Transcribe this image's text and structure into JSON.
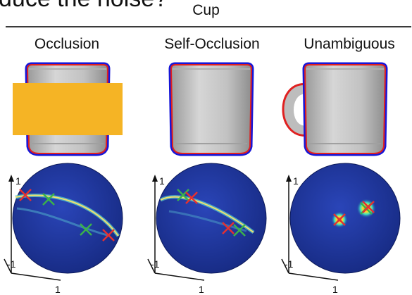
{
  "cut_text": "duce the noise?",
  "title": "Cup",
  "columns": [
    {
      "label": "Occlusion",
      "has_occluder": true,
      "has_handle": false
    },
    {
      "label": "Self-Occlusion",
      "has_occluder": false,
      "has_handle": false
    },
    {
      "label": "Unambiguous",
      "has_occluder": false,
      "has_handle": true
    }
  ],
  "axis_ticks": {
    "up": "1",
    "left": "-1",
    "bottom": "1"
  },
  "colors": {
    "cup_body": "#c9c9c9",
    "cup_outline_blue": "#1616d8",
    "cup_outline_red": "#e02020",
    "occluder": "#f5b425",
    "sphere": "#1f38a6",
    "marker_red": "#e53030",
    "marker_green": "#3bb24a"
  }
}
